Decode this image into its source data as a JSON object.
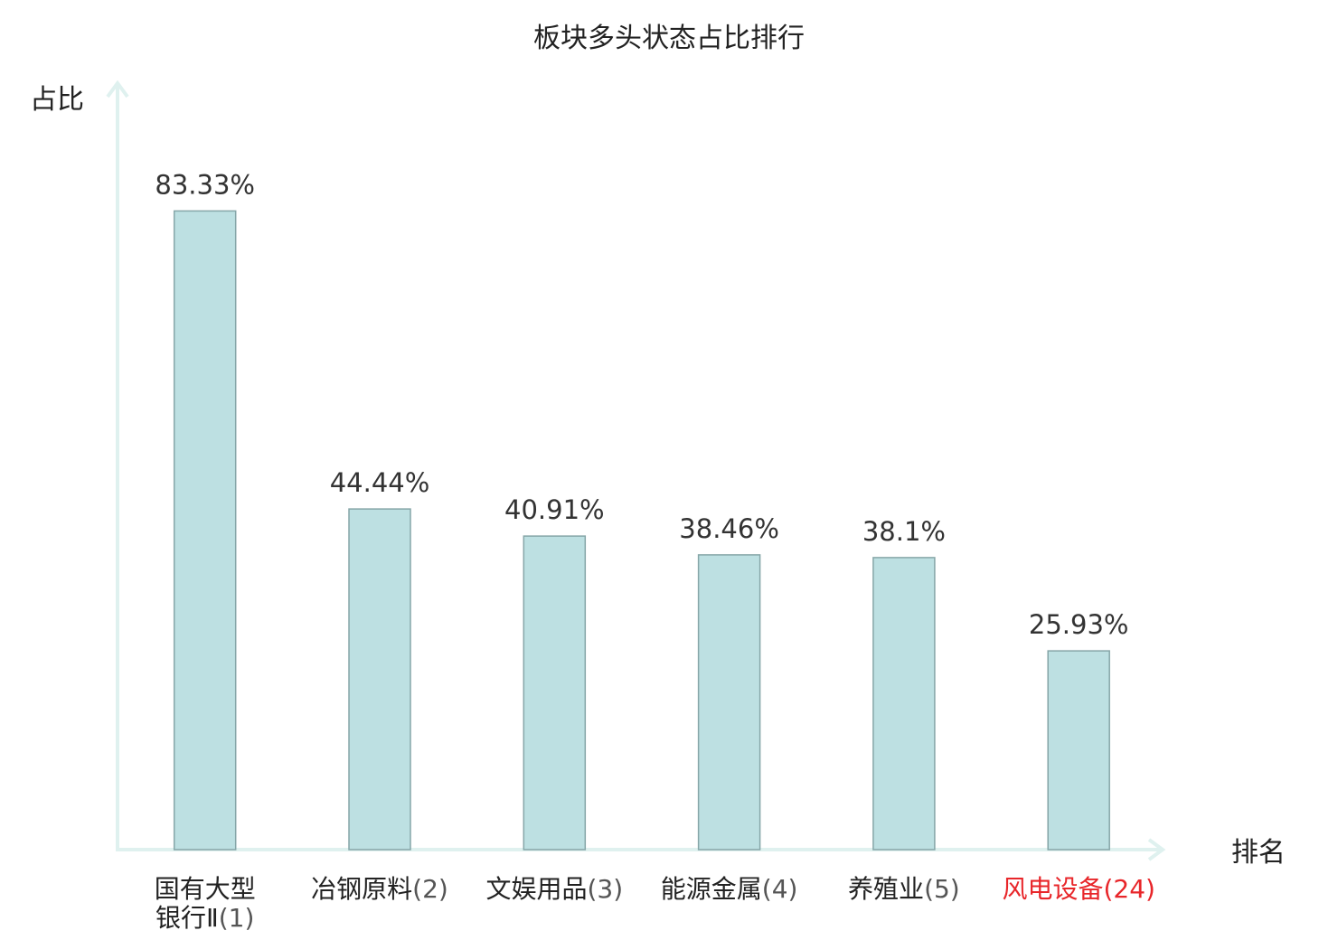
{
  "chart_data": {
    "type": "bar",
    "title": "板块多头状态占比排行",
    "ylabel": "占比",
    "xlabel": "排名",
    "ylim": [
      0,
      100
    ],
    "grid": false,
    "categories": [
      {
        "name_lines": [
          "国有大型",
          "银行Ⅱ"
        ],
        "rank": "(1)",
        "highlight": false
      },
      {
        "name_lines": [
          "冶钢原料"
        ],
        "rank": "(2)",
        "highlight": false
      },
      {
        "name_lines": [
          "文娱用品"
        ],
        "rank": "(3)",
        "highlight": false
      },
      {
        "name_lines": [
          "能源金属"
        ],
        "rank": "(4)",
        "highlight": false
      },
      {
        "name_lines": [
          "养殖业"
        ],
        "rank": "(5)",
        "highlight": false
      },
      {
        "name_lines": [
          "风电设备"
        ],
        "rank": "(24)",
        "highlight": true
      }
    ],
    "values": [
      83.33,
      44.44,
      40.91,
      38.46,
      38.1,
      25.93
    ],
    "value_labels": [
      "83.33%",
      "44.44%",
      "40.91%",
      "38.46%",
      "38.1%",
      "25.93%"
    ],
    "colors": {
      "bar_fill": "#bde0e2",
      "bar_stroke": "#86a6a8",
      "axis": "#dff1ef",
      "highlight_text": "#e8262a"
    }
  }
}
